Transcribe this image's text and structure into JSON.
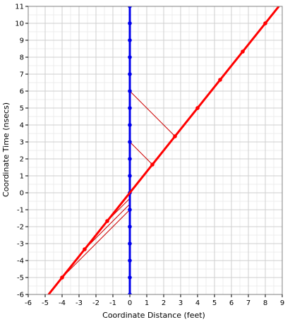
{
  "chart_data": {
    "type": "line",
    "title": "",
    "xlabel": "Coordinate Distance (feet)",
    "ylabel": "Coordinate Time (nsecs)",
    "xlim": [
      -6,
      9
    ],
    "ylim": [
      -6,
      11
    ],
    "x_ticks": [
      -6,
      -5,
      -4,
      -3,
      -2,
      -1,
      0,
      1,
      2,
      3,
      4,
      5,
      6,
      7,
      8,
      9
    ],
    "y_ticks": [
      -6,
      -5,
      -4,
      -3,
      -2,
      -1,
      0,
      1,
      2,
      3,
      4,
      5,
      6,
      7,
      8,
      9,
      10,
      11
    ],
    "grid": true,
    "minor_grid": true,
    "legend": "none",
    "series": [
      {
        "color": "#0000ee",
        "style": "thick-line-with-markers",
        "points": [
          [
            0,
            -6
          ],
          [
            0,
            -5
          ],
          [
            0,
            -4
          ],
          [
            0,
            -3
          ],
          [
            0,
            -2
          ],
          [
            0,
            -1
          ],
          [
            0,
            0
          ],
          [
            0,
            1
          ],
          [
            0,
            2
          ],
          [
            0,
            3
          ],
          [
            0,
            4
          ],
          [
            0,
            5
          ],
          [
            0,
            6
          ],
          [
            0,
            7
          ],
          [
            0,
            8
          ],
          [
            0,
            9
          ],
          [
            0,
            10
          ],
          [
            0,
            11
          ]
        ],
        "line_range": [
          [
            0,
            -6
          ],
          [
            0,
            11
          ]
        ]
      },
      {
        "color": "#ff0000",
        "style": "thick-line-with-markers",
        "points": [
          [
            -4,
            -5
          ],
          [
            -2.667,
            -3.333
          ],
          [
            -1.333,
            -1.667
          ],
          [
            1.333,
            1.667
          ],
          [
            2.667,
            3.333
          ],
          [
            4,
            5
          ],
          [
            5.333,
            6.667
          ],
          [
            6.667,
            8.333
          ],
          [
            8,
            10
          ]
        ],
        "line_range": [
          [
            -4.8,
            -6
          ],
          [
            8.8,
            11
          ]
        ]
      },
      {
        "color": "#cc0000",
        "style": "thin-segments",
        "segments": [
          [
            [
              0,
              3
            ],
            [
              1.333,
              1.667
            ]
          ],
          [
            [
              0,
              6
            ],
            [
              2.667,
              3.333
            ]
          ],
          [
            [
              0,
              -0.333
            ],
            [
              -1.333,
              -1.667
            ]
          ],
          [
            [
              0,
              -0.667
            ],
            [
              -2.667,
              -3.333
            ]
          ],
          [
            [
              0,
              -1
            ],
            [
              -4,
              -5
            ]
          ]
        ]
      }
    ]
  }
}
